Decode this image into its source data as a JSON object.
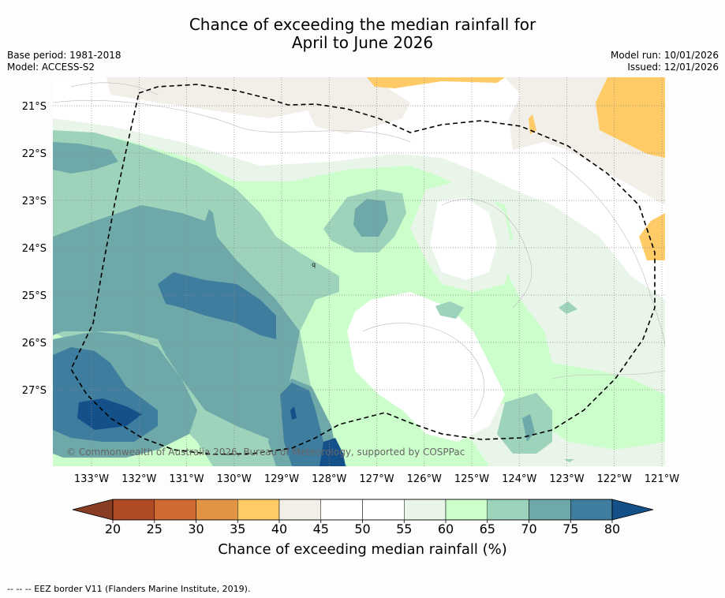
{
  "header": {
    "title_line1": "Chance of exceeding the median rainfall for",
    "title_line2": "April to June 2026",
    "base_period": "Base period: 1981-2018",
    "model": "Model: ACCESS-S2",
    "model_run": "Model run: 10/01/2026",
    "issued": "Issued: 12/01/2026"
  },
  "map": {
    "copyright": "© Commonwealth of Australia 2026, Bureau of Meteorology, supported by COSPPac",
    "lat_labels": [
      "21°S",
      "22°S",
      "23°S",
      "24°S",
      "25°S",
      "26°S",
      "27°S"
    ],
    "lon_labels": [
      "133°W",
      "132°W",
      "131°W",
      "130°W",
      "129°W",
      "128°W",
      "127°W",
      "126°W",
      "125°W",
      "124°W",
      "123°W",
      "122°W",
      "121°W"
    ],
    "marker": "q"
  },
  "colorbar": {
    "ticks": [
      "20",
      "25",
      "30",
      "35",
      "40",
      "45",
      "50",
      "55",
      "60",
      "65",
      "70",
      "75",
      "80"
    ],
    "colors": [
      "#b04a25",
      "#d06a35",
      "#e29445",
      "#fecb66",
      "#f2eee8",
      "#ffffff",
      "#ffffff",
      "#e9f5e9",
      "#ccfecc",
      "#9dd3bb",
      "#6ea8a8",
      "#3f7d9e"
    ],
    "low_color": "#893d25",
    "high_color": "#14508a",
    "label": "Chance of exceeding median rainfall (%)"
  },
  "footer": {
    "legend": "--  --  -- EEZ border V11 (Flanders Marine Institute, 2019)."
  }
}
